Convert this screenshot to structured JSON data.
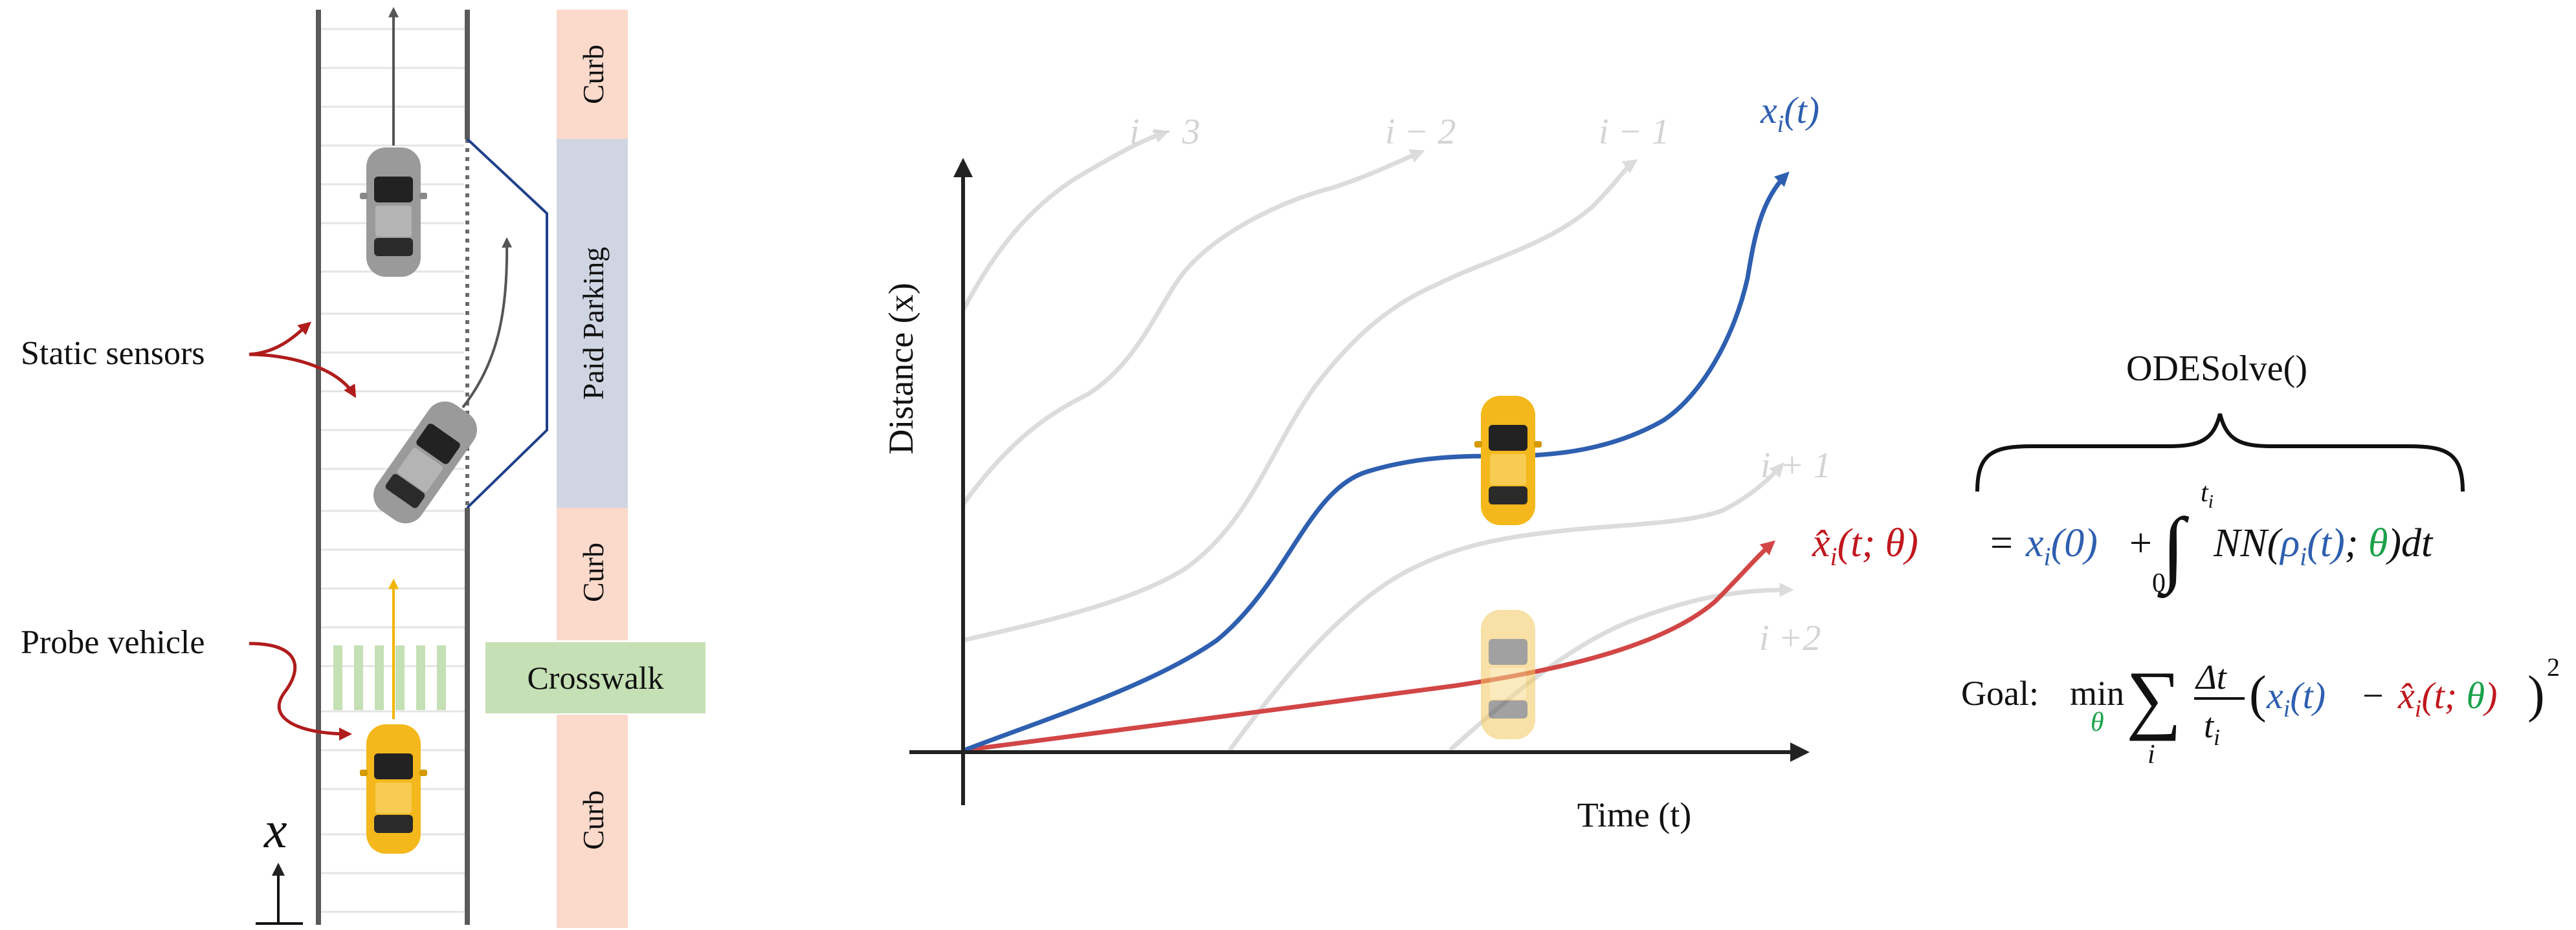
{
  "road": {
    "side_labels": {
      "curb_top": "Curb",
      "paid_parking": "Paid Parking",
      "curb_mid": "Curb",
      "crosswalk": "Crosswalk",
      "curb_bottom": "Curb"
    },
    "callouts": {
      "static_sensors": "Static sensors",
      "probe_vehicle": "Probe vehicle"
    },
    "axis_symbol": "x",
    "colors": {
      "curb": "#fbd9cb",
      "parking": "#cfd5e3",
      "crosswalk": "#c5e0b4",
      "lane_line": "#5a5a5a",
      "arrow_red": "#b01c1c",
      "probe_arrow": "#f2b400"
    }
  },
  "plot": {
    "ylabel": "Distance (x)",
    "xlabel": "Time (t)",
    "trajectory_labels": {
      "i_minus_3": "i − 3",
      "i_minus_2": "i − 2",
      "i_minus_1": "i − 1",
      "i_plus_1": "i + 1",
      "i_plus_2": "i +2"
    },
    "true_label": "x_i(t)",
    "colors": {
      "true_traj": "#2e5fb0",
      "pred_traj": "#d24646",
      "other_traj": "#d9d9d9",
      "axes": "#222222"
    }
  },
  "equations": {
    "brace_label": "ODESolve()",
    "eq1": {
      "lhs": "x̂_i(t; θ)",
      "equals": "=",
      "x0": "x_i(0)",
      "plus": "+",
      "integral_upper": "t_i",
      "integral_lower": "0",
      "integrand": "NN(ρ_i(t); θ)dt"
    },
    "goal": {
      "label": "Goal:",
      "min": "min",
      "min_sub": "θ",
      "sum_sub": "i",
      "frac_num": "Δt",
      "frac_den": "t_i",
      "term_true": "x_i(t)",
      "minus": "−",
      "term_pred": "x̂_i(t; θ)",
      "power": "2"
    },
    "colors": {
      "blue": "#2e5fb0",
      "red": "#c0171d",
      "green": "#1aa24a",
      "black": "#111111"
    }
  }
}
